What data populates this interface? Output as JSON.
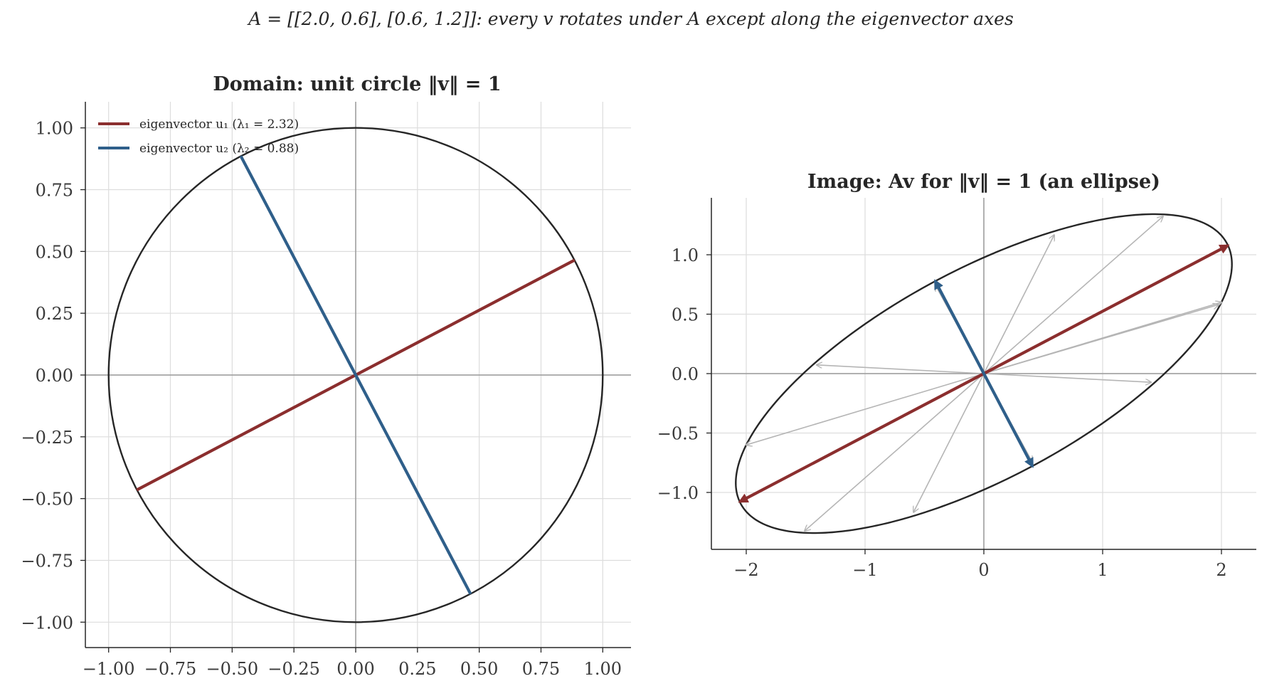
{
  "figure": {
    "suptitle": "A = [[2.0, 0.6], [0.6, 1.2]]: every v rotates under A except along the eigenvector axes"
  },
  "colors": {
    "eig1": "#8b2e2e",
    "eig2": "#2f5f8a",
    "curve": "#262626",
    "sample": "#b5b5b5",
    "grid": "#dddddd",
    "zero_axis": "#999999"
  },
  "chart_data": [
    {
      "type": "line",
      "title": "Domain: unit circle ‖v‖ = 1",
      "xlabel": "",
      "ylabel": "",
      "xlim": [
        -1.1,
        1.1
      ],
      "ylim": [
        -1.1,
        1.1
      ],
      "xticks": [
        "−1.00",
        "−0.75",
        "−0.50",
        "−0.25",
        "0.00",
        "0.25",
        "0.50",
        "0.75",
        "1.00"
      ],
      "yticks": [
        "1.00",
        "0.75",
        "0.50",
        "0.25",
        "0.00",
        "−0.25",
        "−0.50",
        "−0.75",
        "−1.00"
      ],
      "grid": true,
      "legend_position": "upper-left",
      "series": [
        {
          "name": "eigenvector u₁ (λ₁ = 2.32)",
          "x": [
            -0.886,
            0.886
          ],
          "y": [
            -0.465,
            0.465
          ]
        },
        {
          "name": "eigenvector u₂ (λ₂ = 0.88)",
          "x": [
            -0.465,
            0.465
          ],
          "y": [
            0.886,
            -0.886
          ]
        }
      ],
      "curve": "unit circle x² + y² = 1"
    },
    {
      "type": "line",
      "title": "Image: Av for ‖v‖ = 1 (an ellipse)",
      "xlabel": "",
      "ylabel": "",
      "xlim": [
        -2.35,
        2.35
      ],
      "ylim": [
        -1.48,
        1.48
      ],
      "xticks": [
        "−2",
        "−1",
        "0",
        "1",
        "2"
      ],
      "yticks": [
        "1.0",
        "0.5",
        "0.0",
        "−0.5",
        "−1.0"
      ],
      "grid": true,
      "curve": "ellipse image of unit circle under A",
      "eigen_arrows": [
        {
          "series": "u1",
          "x": 2.054,
          "y": 1.078
        },
        {
          "series": "u1",
          "x": -2.054,
          "y": -1.078
        },
        {
          "series": "u2",
          "x": -0.41,
          "y": 0.78
        },
        {
          "series": "u2",
          "x": 0.41,
          "y": -0.78
        }
      ],
      "sample_arrows": [
        {
          "x": 2.0,
          "y": 0.6
        },
        {
          "x": 1.508,
          "y": 1.323
        },
        {
          "x": 0.592,
          "y": 1.166
        },
        {
          "x": -0.407,
          "y": 0.742
        },
        {
          "x": -1.408,
          "y": 0.073
        },
        {
          "x": -1.508,
          "y": -1.323
        },
        {
          "x": -0.592,
          "y": -1.166
        },
        {
          "x": 0.407,
          "y": -0.742
        },
        {
          "x": 1.408,
          "y": -0.073
        },
        {
          "x": -2.0,
          "y": -0.6
        },
        {
          "x": 1.975,
          "y": 0.58
        }
      ]
    }
  ]
}
